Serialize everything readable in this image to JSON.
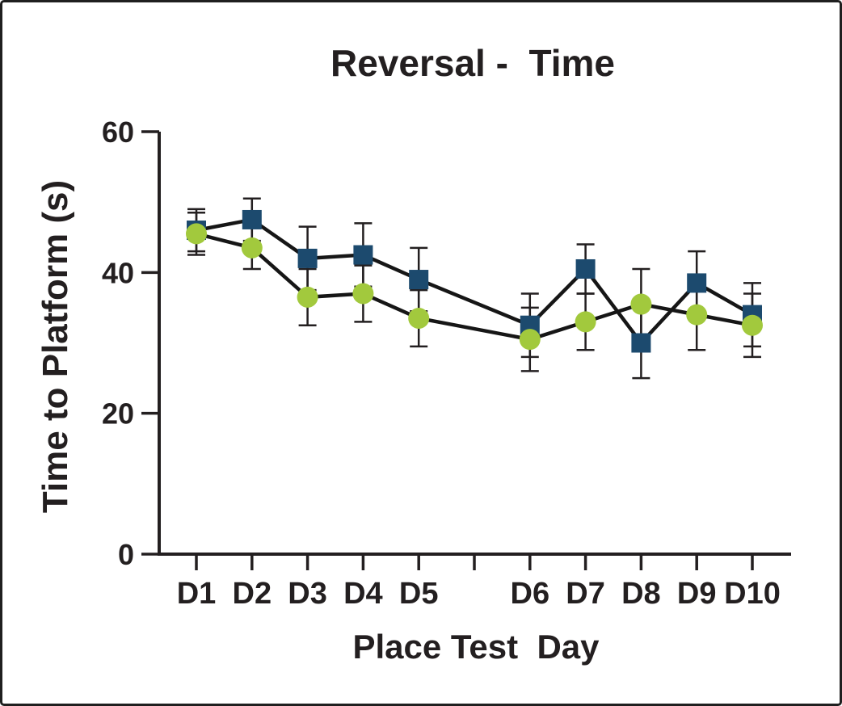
{
  "window": {
    "background_color": "#ffffff",
    "frame_border_color": "#1f1f1f"
  },
  "chart_data": {
    "type": "line",
    "title": "Reversal -  Time",
    "xlabel": "Place Test  Day",
    "ylabel": "Time to Platform (s)",
    "categories": [
      "D1",
      "D2",
      "D3",
      "D4",
      "D5",
      "D6",
      "D7",
      "D8",
      "D9",
      "D10"
    ],
    "x_tick_slots": [
      1,
      2,
      3,
      4,
      5,
      7,
      8,
      9,
      10,
      11
    ],
    "total_x_slots": 11,
    "unlabeled_gap_slot": 6,
    "ylim": [
      0,
      60
    ],
    "yticks": [
      0,
      20,
      40,
      60
    ],
    "grid": false,
    "legend_position": "none",
    "axis_color": "#231f20",
    "line_color": "#161616",
    "series": [
      {
        "marker": "square",
        "marker_color": "#1c4a6e",
        "values": [
          46,
          47.5,
          42,
          42.5,
          39,
          32.5,
          40.5,
          30,
          38.5,
          34
        ],
        "errors": [
          3,
          3,
          4.5,
          4.5,
          4.5,
          4.5,
          3.5,
          5,
          4.5,
          4.5
        ]
      },
      {
        "marker": "circle",
        "marker_color": "#a2c93d",
        "values": [
          45.5,
          43.5,
          36.5,
          37,
          33.5,
          30.5,
          33,
          35.5,
          34,
          32.5
        ],
        "errors": [
          3,
          3,
          4,
          4,
          4,
          4.5,
          4,
          5,
          5,
          4.5
        ]
      }
    ]
  }
}
